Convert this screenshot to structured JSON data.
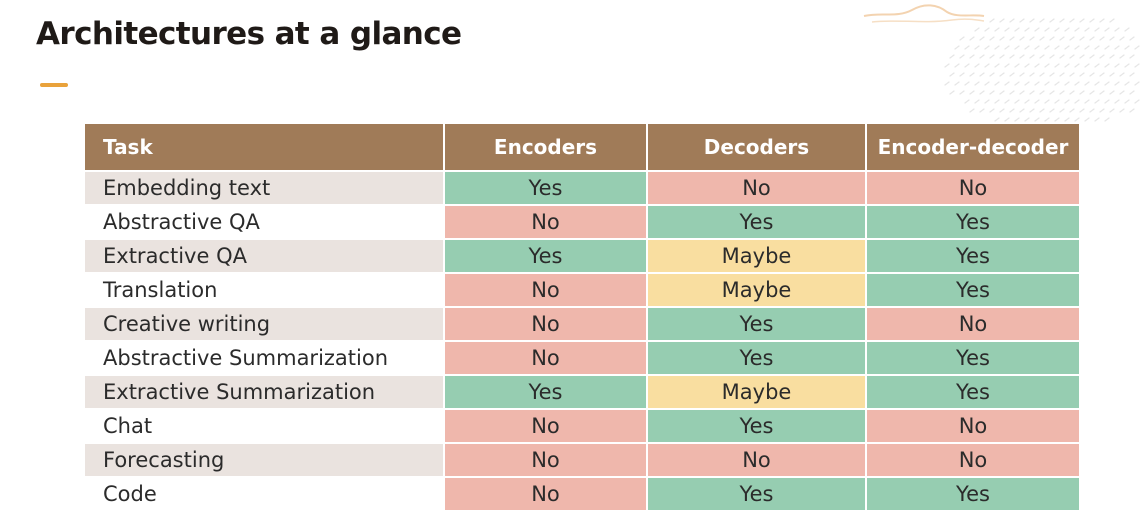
{
  "slide": {
    "title": "Architectures at a glance"
  },
  "table": {
    "headers": [
      "Task",
      "Encoders",
      "Decoders",
      "Encoder-decoder"
    ],
    "rows": [
      {
        "task": "Embedding text",
        "values": [
          "Yes",
          "No",
          "No"
        ]
      },
      {
        "task": "Abstractive QA",
        "values": [
          "No",
          "Yes",
          "Yes"
        ]
      },
      {
        "task": "Extractive QA",
        "values": [
          "Yes",
          "Maybe",
          "Yes"
        ]
      },
      {
        "task": "Translation",
        "values": [
          "No",
          "Maybe",
          "Yes"
        ]
      },
      {
        "task": "Creative writing",
        "values": [
          "No",
          "Yes",
          "No"
        ]
      },
      {
        "task": "Abstractive Summarization",
        "values": [
          "No",
          "Yes",
          "Yes"
        ]
      },
      {
        "task": "Extractive Summarization",
        "values": [
          "Yes",
          "Maybe",
          "Yes"
        ]
      },
      {
        "task": "Chat",
        "values": [
          "No",
          "Yes",
          "No"
        ]
      },
      {
        "task": "Forecasting",
        "values": [
          "No",
          "No",
          "No"
        ]
      },
      {
        "task": "Code",
        "values": [
          "No",
          "Yes",
          "Yes"
        ]
      }
    ]
  },
  "colors": {
    "header_bg": "#a07b58",
    "yes": "#96cdb1",
    "no": "#efb7ac",
    "maybe": "#f9dea0",
    "accent": "#e9a23b"
  }
}
